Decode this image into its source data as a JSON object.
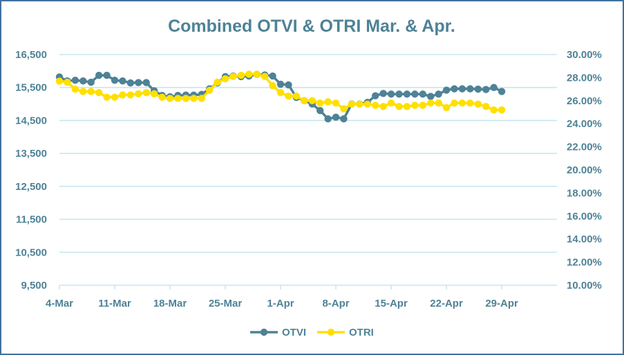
{
  "chart_data": {
    "type": "line",
    "title": "Combined OTVI & OTRI Mar. & Apr.",
    "x_tick_labels": [
      "4-Mar",
      "11-Mar",
      "18-Mar",
      "25-Mar",
      "1-Apr",
      "8-Apr",
      "15-Apr",
      "22-Apr",
      "29-Apr"
    ],
    "y_left": {
      "ticks": [
        9500,
        10500,
        11500,
        12500,
        13500,
        14500,
        15500,
        16500
      ],
      "tick_labels": [
        "9,500",
        "10,500",
        "11,500",
        "12,500",
        "13,500",
        "14,500",
        "15,500",
        "16,500"
      ],
      "ylim": [
        9500,
        16500
      ]
    },
    "y_right": {
      "ticks": [
        0.1,
        0.12,
        0.14,
        0.16,
        0.18,
        0.2,
        0.22,
        0.24,
        0.26,
        0.28,
        0.3
      ],
      "tick_labels": [
        "10.00%",
        "12.00%",
        "14.00%",
        "16.00%",
        "18.00%",
        "20.00%",
        "22.00%",
        "24.00%",
        "26.00%",
        "28.00%",
        "30.00%"
      ],
      "ylim": [
        0.1,
        0.3
      ]
    },
    "grid": true,
    "legend_position": "bottom",
    "series": [
      {
        "name": "OTVI",
        "axis": "left",
        "color": "#4e8296",
        "values": [
          15820,
          15700,
          15720,
          15700,
          15660,
          15870,
          15870,
          15720,
          15700,
          15640,
          15650,
          15650,
          15400,
          15260,
          15220,
          15260,
          15270,
          15270,
          15290,
          15460,
          15640,
          15830,
          15850,
          15830,
          15850,
          15900,
          15880,
          15850,
          15600,
          15580,
          15200,
          15100,
          15000,
          14800,
          14550,
          14600,
          14550,
          15000,
          15000,
          15050,
          15250,
          15320,
          15300,
          15300,
          15300,
          15300,
          15300,
          15230,
          15300,
          15420,
          15460,
          15460,
          15460,
          15450,
          15440,
          15500,
          15380
        ]
      },
      {
        "name": "OTRI",
        "axis": "right",
        "color": "#ffe000",
        "values": [
          0.277,
          0.276,
          0.27,
          0.268,
          0.268,
          0.267,
          0.263,
          0.263,
          0.265,
          0.265,
          0.266,
          0.267,
          0.266,
          0.263,
          0.262,
          0.262,
          0.262,
          0.262,
          0.262,
          0.269,
          0.276,
          0.279,
          0.281,
          0.282,
          0.283,
          0.283,
          0.281,
          0.273,
          0.267,
          0.264,
          0.264,
          0.26,
          0.26,
          0.258,
          0.259,
          0.258,
          0.253,
          0.257,
          0.257,
          0.257,
          0.256,
          0.255,
          0.258,
          0.255,
          0.255,
          0.256,
          0.256,
          0.258,
          0.258,
          0.254,
          0.258,
          0.258,
          0.258,
          0.257,
          0.255,
          0.252,
          0.252
        ]
      }
    ]
  }
}
